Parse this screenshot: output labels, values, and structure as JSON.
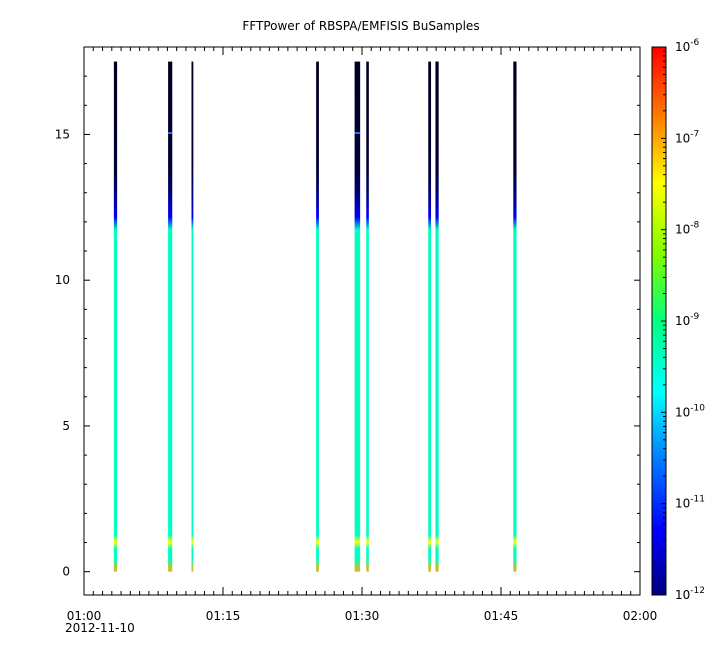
{
  "chart_data": {
    "type": "heatmap",
    "title": "FFTPower of RBSPA/EMFISIS  BuSamples",
    "xlabel": "",
    "ylabel": "",
    "x_tick_labels": [
      "01:00",
      "01:15",
      "01:30",
      "01:45",
      "02:00"
    ],
    "x_tick_minutes": [
      0,
      15,
      30,
      45,
      60
    ],
    "x_date_label": "2012-11-10",
    "y_tick_labels": [
      "0",
      "5",
      "10",
      "15"
    ],
    "y_tick_values": [
      0,
      5,
      10,
      15
    ],
    "xlim_minutes": [
      0,
      60
    ],
    "ylim": [
      -0.8,
      18.0
    ],
    "colorbar": {
      "scale": "log",
      "range": [
        1e-12,
        1e-06
      ],
      "tick_labels": [
        {
          "base": "10",
          "exp": "-6"
        },
        {
          "base": "10",
          "exp": "-7"
        },
        {
          "base": "10",
          "exp": "-8"
        },
        {
          "base": "10",
          "exp": "-9"
        },
        {
          "base": "10",
          "exp": "-10"
        },
        {
          "base": "10",
          "exp": "-11"
        },
        {
          "base": "10",
          "exp": "-12"
        }
      ],
      "tick_exponents": [
        -6,
        -7,
        -8,
        -9,
        -10,
        -11,
        -12
      ]
    },
    "bursts": [
      {
        "minute": 3.4,
        "width_minutes": 0.35,
        "y_top": 17.5
      },
      {
        "minute": 9.3,
        "width_minutes": 0.45,
        "y_top": 17.5
      },
      {
        "minute": 11.7,
        "width_minutes": 0.2,
        "y_top": 17.5
      },
      {
        "minute": 25.2,
        "width_minutes": 0.3,
        "y_top": 17.5
      },
      {
        "minute": 29.5,
        "width_minutes": 0.6,
        "y_top": 17.5
      },
      {
        "minute": 30.6,
        "width_minutes": 0.28,
        "y_top": 17.5
      },
      {
        "minute": 37.3,
        "width_minutes": 0.3,
        "y_top": 17.5
      },
      {
        "minute": 38.1,
        "width_minutes": 0.35,
        "y_top": 17.5
      },
      {
        "minute": 46.5,
        "width_minutes": 0.35,
        "y_top": 17.5
      }
    ]
  }
}
